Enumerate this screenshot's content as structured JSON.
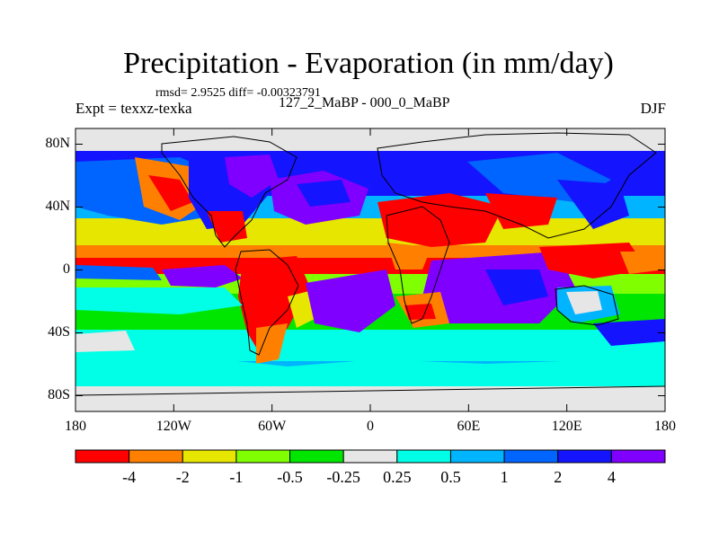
{
  "title": "Precipitation - Evaporation (in mm/day)",
  "stats_text": "rmsd= 2.9525 diff= -0.00323791",
  "experiment_label": "Expt = texxz-texka",
  "comparison_label": "127_2_MaBP - 000_0_MaBP",
  "season_label": "DJF",
  "y_axis": {
    "ticks": [
      {
        "label": "80N",
        "lat": 80
      },
      {
        "label": "40N",
        "lat": 40
      },
      {
        "label": "0",
        "lat": 0
      },
      {
        "label": "40S",
        "lat": -40
      },
      {
        "label": "80S",
        "lat": -80
      }
    ]
  },
  "x_axis": {
    "ticks": [
      {
        "label": "180",
        "lon": -180
      },
      {
        "label": "120W",
        "lon": -120
      },
      {
        "label": "60W",
        "lon": -60
      },
      {
        "label": "0",
        "lon": 0
      },
      {
        "label": "60E",
        "lon": 60
      },
      {
        "label": "120E",
        "lon": 120
      },
      {
        "label": "180",
        "lon": 180
      }
    ]
  },
  "colorbar": {
    "colors": [
      "#ff0000",
      "#ff8000",
      "#e6e600",
      "#80ff00",
      "#00e600",
      "#e6e6e6",
      "#00ffe6",
      "#00b4ff",
      "#0064ff",
      "#1414ff",
      "#8000ff"
    ],
    "labels": [
      "-4",
      "-2",
      "-1",
      "-0.5",
      "-0.25",
      "0.25",
      "0.5",
      "1",
      "2",
      "4"
    ]
  }
}
